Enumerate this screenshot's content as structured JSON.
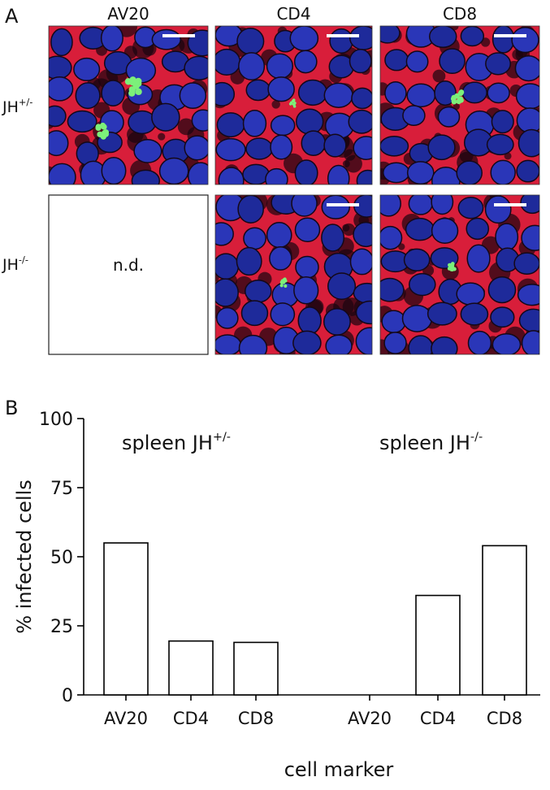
{
  "panel_a": {
    "label": "A",
    "columns": [
      "AV20",
      "CD4",
      "CD8"
    ],
    "rows": [
      {
        "base": "JH",
        "sup": "+/-"
      },
      {
        "base": "JH",
        "sup": "-/-"
      }
    ],
    "missing_text": "n.d."
  },
  "chart_data": {
    "type": "bar",
    "panel_label": "B",
    "categories": [
      "AV20",
      "CD4",
      "CD8",
      "AV20",
      "CD4",
      "CD8"
    ],
    "values": [
      55,
      19.5,
      19,
      null,
      36,
      54
    ],
    "color": "#ffffff",
    "ylim": [
      0,
      100
    ],
    "yticks": [
      0,
      25,
      50,
      75,
      100
    ],
    "ylabel": "% infected cells",
    "xlabel": "cell marker",
    "annotations": [
      {
        "base": "spleen JH",
        "sup": "+/-"
      },
      {
        "base": "spleen JH",
        "sup": "-/-"
      }
    ]
  }
}
